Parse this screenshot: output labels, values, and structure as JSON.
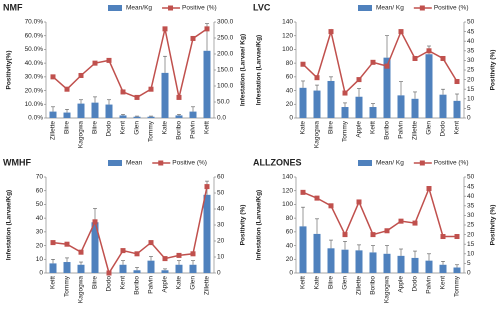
{
  "chart_data": [
    {
      "type": "combo",
      "title": "NMF",
      "ylabel": "Positivity(%)",
      "y2label": "Infestation (Larvae/ Kg)",
      "categories": [
        "Zillette",
        "Biire",
        "Kagogwa",
        "Biire",
        "Dodo",
        "Kent",
        "Glen",
        "Tommy",
        "Kate",
        "Boribo",
        "Palvin",
        "Keitt"
      ],
      "ylim": [
        0,
        70
      ],
      "yticks": [
        {
          "value": 0,
          "label": "0.0%"
        },
        {
          "value": 10,
          "label": "10.0%"
        },
        {
          "value": 20,
          "label": "20.0%"
        },
        {
          "value": 30,
          "label": "30.0%"
        },
        {
          "value": 40,
          "label": "40.0%"
        },
        {
          "value": 50,
          "label": "50.0%"
        },
        {
          "value": 60,
          "label": "60.0%"
        },
        {
          "value": 70,
          "label": "70.0%"
        }
      ],
      "y2lim": [
        0,
        300
      ],
      "y2ticks": [
        {
          "value": 0,
          "label": "0.0"
        },
        {
          "value": 50,
          "label": "50.0"
        },
        {
          "value": 100,
          "label": "100.0"
        },
        {
          "value": 150,
          "label": "150.0"
        },
        {
          "value": 200,
          "label": "200.0"
        },
        {
          "value": 250,
          "label": "250.0"
        },
        {
          "value": 300,
          "label": "300.0"
        }
      ],
      "series": [
        {
          "name": "Mean/Kg",
          "type": "bar",
          "axis": "y2",
          "color": "#4f81bd",
          "values": [
            20,
            17,
            45,
            48,
            42,
            8,
            4,
            4,
            141,
            8,
            20,
            210
          ],
          "errors": [
            15,
            10,
            12,
            18,
            15,
            3,
            2,
            2,
            52,
            3,
            15,
            85
          ]
        },
        {
          "name": "Positive (%)",
          "type": "line",
          "color": "#c0504d",
          "values": [
            30,
            21,
            31,
            40,
            42,
            19,
            15,
            21,
            65,
            15,
            58,
            65
          ]
        }
      ]
    },
    {
      "type": "combo",
      "title": "LVC",
      "ylabel": "Infestation (Larvae/Kg)",
      "y2label": "Positivity (%)",
      "categories": [
        "Kate",
        "Kagogwa",
        "Biire",
        "Tommy",
        "Apple",
        "Keitt",
        "Boribo",
        "Palvin",
        "Zillette",
        "Glen",
        "Dodo",
        "Kent"
      ],
      "ylim": [
        0,
        140
      ],
      "yticks": [
        0,
        20,
        40,
        60,
        80,
        100,
        120,
        140
      ],
      "y2lim": [
        0,
        50
      ],
      "y2ticks": [
        0,
        5,
        10,
        15,
        20,
        25,
        30,
        35,
        40,
        45,
        50
      ],
      "series": [
        {
          "name": "Mean/ Kg",
          "type": "bar",
          "color": "#4f81bd",
          "values": [
            44,
            40,
            54,
            16,
            31,
            16,
            88,
            33,
            28,
            93,
            34,
            25
          ],
          "errors": [
            10,
            8,
            6,
            6,
            12,
            5,
            32,
            20,
            10,
            12,
            8,
            10
          ]
        },
        {
          "name": "Positive (%)",
          "type": "line",
          "axis": "y2",
          "color": "#c0504d",
          "values": [
            28,
            21,
            45,
            13,
            20,
            29,
            27,
            45,
            31,
            35,
            31,
            19
          ]
        }
      ]
    },
    {
      "type": "combo",
      "title": "WMHF",
      "ylabel": "Infestation (Larvae/Kg)",
      "y2label": "Positivity (%)",
      "categories": [
        "Keitt",
        "Tommy",
        "Kagogwa",
        "Biire",
        "Dodo",
        "Kent",
        "Boribo",
        "Palvin",
        "Apple",
        "Kate",
        "Glen",
        "Zillette"
      ],
      "ylim": [
        0,
        70
      ],
      "yticks": [
        0,
        10,
        20,
        30,
        40,
        50,
        60,
        70
      ],
      "y2lim": [
        0,
        60
      ],
      "y2ticks": [
        0,
        10,
        20,
        30,
        40,
        50,
        60
      ],
      "series": [
        {
          "name": "Mean",
          "type": "bar",
          "color": "#4f81bd",
          "values": [
            7,
            8,
            6,
            37,
            0,
            6,
            2,
            9,
            2,
            6,
            6,
            57
          ],
          "errors": [
            3,
            3,
            2,
            10,
            0,
            3,
            2,
            3,
            1,
            3,
            3,
            10
          ]
        },
        {
          "name": "Positive (%)",
          "type": "line",
          "axis": "y2",
          "color": "#c0504d",
          "values": [
            19,
            18,
            13,
            32,
            0,
            14,
            12,
            19,
            9,
            11,
            12,
            54
          ]
        }
      ]
    },
    {
      "type": "combo",
      "title": "ALLZONES",
      "ylabel": "Infestation (Larvae/Kg)",
      "y2label": "Positivity (%)",
      "categories": [
        "Keitt",
        "Kate",
        "Biire",
        "Glen",
        "Zillette",
        "Boribo",
        "Kagogwa",
        "Apple",
        "Dodo",
        "Palvin",
        "Kent",
        "Tommy"
      ],
      "ylim": [
        0,
        140
      ],
      "yticks": [
        0,
        20,
        40,
        60,
        80,
        100,
        120,
        140
      ],
      "y2lim": [
        0,
        50
      ],
      "y2ticks": [
        0,
        5,
        10,
        15,
        20,
        25,
        30,
        35,
        40,
        45,
        50
      ],
      "series": [
        {
          "name": "Mean/ Kg",
          "type": "bar",
          "color": "#4f81bd",
          "values": [
            68,
            57,
            36,
            34,
            33,
            30,
            28,
            25,
            22,
            18,
            12,
            8
          ],
          "errors": [
            28,
            22,
            12,
            12,
            8,
            10,
            12,
            10,
            10,
            10,
            5,
            4
          ]
        },
        {
          "name": "Positive (%)",
          "type": "line",
          "axis": "y2",
          "color": "#c0504d",
          "values": [
            42,
            39,
            35,
            20,
            37,
            20,
            22,
            27,
            26,
            44,
            19,
            19
          ]
        }
      ]
    }
  ]
}
